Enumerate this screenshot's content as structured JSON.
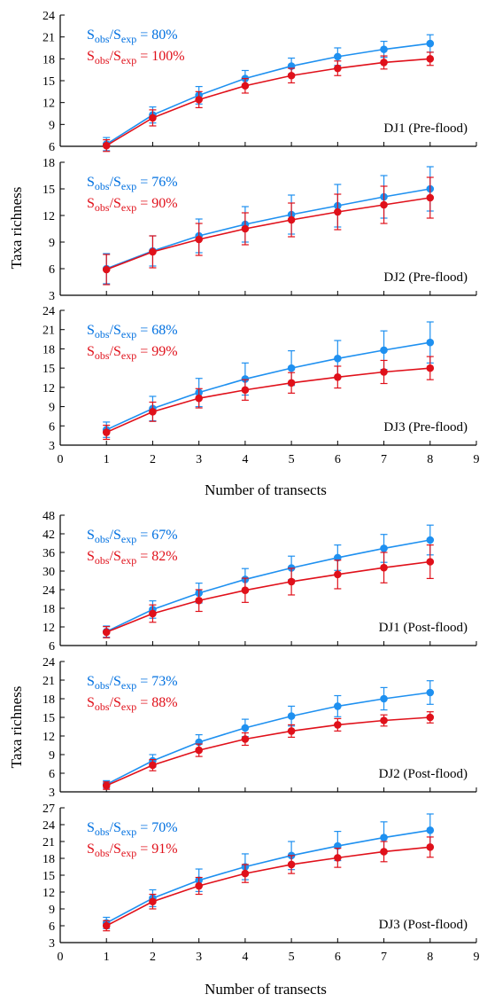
{
  "colors": {
    "observed": "#0070e0",
    "expected": "#e0101a",
    "axis": "#000000"
  },
  "groups": [
    {
      "xlabel": "Number of transects",
      "ylabel": "Taxa richness"
    },
    {
      "xlabel": "Number of transects",
      "ylabel": "Taxa richness"
    }
  ],
  "chart_data": [
    {
      "type": "line",
      "group": 0,
      "panel_label": "DJ1 (Pre-flood)",
      "x": [
        1,
        2,
        3,
        4,
        5,
        6,
        7,
        8
      ],
      "xlim": [
        0,
        9
      ],
      "ylim": [
        6,
        24
      ],
      "yticks": [
        6,
        9,
        12,
        15,
        18,
        21,
        24
      ],
      "annotations": [
        {
          "parts": [
            [
              "S",
              ""
            ],
            [
              "obs",
              "sub"
            ],
            [
              "/S",
              ""
            ],
            [
              "exp",
              "sub"
            ],
            [
              " = 80%",
              ""
            ]
          ],
          "color": "#0070e0"
        },
        {
          "parts": [
            [
              "S",
              ""
            ],
            [
              "obs",
              "sub"
            ],
            [
              "/S",
              ""
            ],
            [
              "exp",
              "sub"
            ],
            [
              " = 100%",
              ""
            ]
          ],
          "color": "#e0101a"
        }
      ],
      "series": [
        {
          "color": "#1e90f0",
          "values": [
            6.3,
            10.3,
            13.0,
            15.3,
            17.0,
            18.3,
            19.3,
            20.1
          ],
          "err": [
            0.9,
            1.1,
            1.2,
            1.1,
            1.1,
            1.2,
            1.1,
            1.2
          ]
        },
        {
          "color": "#e0101a",
          "values": [
            6.1,
            9.9,
            12.4,
            14.3,
            15.7,
            16.7,
            17.5,
            18.0
          ],
          "err": [
            0.8,
            1.1,
            1.1,
            1.0,
            1.0,
            1.0,
            0.9,
            0.9
          ]
        }
      ]
    },
    {
      "type": "line",
      "group": 0,
      "panel_label": "DJ2 (Pre-flood)",
      "x": [
        1,
        2,
        3,
        4,
        5,
        6,
        7,
        8
      ],
      "xlim": [
        0,
        9
      ],
      "ylim": [
        3,
        18
      ],
      "yticks": [
        3,
        6,
        9,
        12,
        15,
        18
      ],
      "annotations": [
        {
          "parts": [
            [
              "S",
              ""
            ],
            [
              "obs",
              "sub"
            ],
            [
              "/S",
              ""
            ],
            [
              "exp",
              "sub"
            ],
            [
              " = 76%",
              ""
            ]
          ],
          "color": "#0070e0"
        },
        {
          "parts": [
            [
              "S",
              ""
            ],
            [
              "obs",
              "sub"
            ],
            [
              "/S",
              ""
            ],
            [
              "exp",
              "sub"
            ],
            [
              " = 90%",
              ""
            ]
          ],
          "color": "#e0101a"
        }
      ],
      "series": [
        {
          "color": "#1e90f0",
          "values": [
            6.0,
            8.0,
            9.7,
            11.0,
            12.1,
            13.1,
            14.1,
            15.0
          ],
          "err": [
            1.7,
            1.7,
            1.9,
            2.0,
            2.2,
            2.4,
            2.4,
            2.5
          ]
        },
        {
          "color": "#e0101a",
          "values": [
            5.9,
            7.9,
            9.3,
            10.5,
            11.5,
            12.4,
            13.2,
            14.0
          ],
          "err": [
            1.7,
            1.8,
            1.8,
            1.8,
            1.9,
            2.0,
            2.1,
            2.3
          ]
        }
      ]
    },
    {
      "type": "line",
      "group": 0,
      "panel_label": "DJ3 (Pre-flood)",
      "x": [
        1,
        2,
        3,
        4,
        5,
        6,
        7,
        8
      ],
      "xlim": [
        0,
        9
      ],
      "ylim": [
        3,
        24
      ],
      "yticks": [
        3,
        6,
        9,
        12,
        15,
        18,
        21,
        24
      ],
      "xticks": [
        0,
        1,
        2,
        3,
        4,
        5,
        6,
        7,
        8,
        9
      ],
      "annotations": [
        {
          "parts": [
            [
              "S",
              ""
            ],
            [
              "obs",
              "sub"
            ],
            [
              "/S",
              ""
            ],
            [
              "exp",
              "sub"
            ],
            [
              " = 68%",
              ""
            ]
          ],
          "color": "#0070e0"
        },
        {
          "parts": [
            [
              "S",
              ""
            ],
            [
              "obs",
              "sub"
            ],
            [
              "/S",
              ""
            ],
            [
              "exp",
              "sub"
            ],
            [
              " = 99%",
              ""
            ]
          ],
          "color": "#e0101a"
        }
      ],
      "series": [
        {
          "color": "#1e90f0",
          "values": [
            5.4,
            8.7,
            11.2,
            13.3,
            15.0,
            16.5,
            17.8,
            19.0
          ],
          "err": [
            1.2,
            1.9,
            2.2,
            2.5,
            2.7,
            2.8,
            3.0,
            3.2
          ]
        },
        {
          "color": "#e0101a",
          "values": [
            5.0,
            8.2,
            10.3,
            11.6,
            12.7,
            13.6,
            14.4,
            15.0
          ],
          "err": [
            1.1,
            1.5,
            1.5,
            1.6,
            1.6,
            1.7,
            1.8,
            1.8
          ]
        }
      ]
    },
    {
      "type": "line",
      "group": 1,
      "panel_label": "DJ1 (Post-flood)",
      "x": [
        1,
        2,
        3,
        4,
        5,
        6,
        7,
        8
      ],
      "xlim": [
        0,
        9
      ],
      "ylim": [
        6,
        48
      ],
      "yticks": [
        6,
        12,
        18,
        24,
        30,
        36,
        42,
        48
      ],
      "annotations": [
        {
          "parts": [
            [
              "S",
              ""
            ],
            [
              "obs",
              "sub"
            ],
            [
              "/S",
              ""
            ],
            [
              "exp",
              "sub"
            ],
            [
              " = 67%",
              ""
            ]
          ],
          "color": "#0070e0"
        },
        {
          "parts": [
            [
              "S",
              ""
            ],
            [
              "obs",
              "sub"
            ],
            [
              "/S",
              ""
            ],
            [
              "exp",
              "sub"
            ],
            [
              " = 82%",
              ""
            ]
          ],
          "color": "#e0101a"
        }
      ],
      "series": [
        {
          "color": "#1e90f0",
          "values": [
            10.5,
            17.6,
            22.9,
            27.3,
            31.0,
            34.3,
            37.3,
            40.0
          ],
          "err": [
            1.8,
            2.8,
            3.2,
            3.5,
            3.8,
            4.1,
            4.5,
            4.8
          ]
        },
        {
          "color": "#e0101a",
          "values": [
            10.3,
            16.3,
            20.5,
            23.8,
            26.6,
            28.9,
            31.1,
            33.0
          ],
          "err": [
            1.8,
            2.8,
            3.5,
            3.9,
            4.3,
            4.6,
            4.9,
            5.4
          ]
        }
      ]
    },
    {
      "type": "line",
      "group": 1,
      "panel_label": "DJ2 (Post-flood)",
      "x": [
        1,
        2,
        3,
        4,
        5,
        6,
        7,
        8
      ],
      "xlim": [
        0,
        9
      ],
      "ylim": [
        3,
        24
      ],
      "yticks": [
        3,
        6,
        9,
        12,
        15,
        18,
        21,
        24
      ],
      "annotations": [
        {
          "parts": [
            [
              "S",
              ""
            ],
            [
              "obs",
              "sub"
            ],
            [
              "/S",
              ""
            ],
            [
              "exp",
              "sub"
            ],
            [
              " = 73%",
              ""
            ]
          ],
          "color": "#0070e0"
        },
        {
          "parts": [
            [
              "S",
              ""
            ],
            [
              "obs",
              "sub"
            ],
            [
              "/S",
              ""
            ],
            [
              "exp",
              "sub"
            ],
            [
              " = 88%",
              ""
            ]
          ],
          "color": "#e0101a"
        }
      ],
      "series": [
        {
          "color": "#1e90f0",
          "values": [
            4.2,
            8.0,
            11.0,
            13.3,
            15.2,
            16.8,
            18.0,
            19.0
          ],
          "err": [
            0.6,
            1.0,
            1.2,
            1.4,
            1.6,
            1.7,
            1.8,
            1.9
          ]
        },
        {
          "color": "#e0101a",
          "values": [
            4.0,
            7.3,
            9.7,
            11.5,
            12.8,
            13.8,
            14.5,
            15.0
          ],
          "err": [
            0.6,
            0.9,
            1.0,
            1.0,
            1.0,
            1.0,
            0.9,
            0.9
          ]
        }
      ]
    },
    {
      "type": "line",
      "group": 1,
      "panel_label": "DJ3 (Post-flood)",
      "x": [
        1,
        2,
        3,
        4,
        5,
        6,
        7,
        8
      ],
      "xlim": [
        0,
        9
      ],
      "ylim": [
        3,
        27
      ],
      "yticks": [
        3,
        6,
        9,
        12,
        15,
        18,
        21,
        24,
        27
      ],
      "xticks": [
        0,
        1,
        2,
        3,
        4,
        5,
        6,
        7,
        8,
        9
      ],
      "annotations": [
        {
          "parts": [
            [
              "S",
              ""
            ],
            [
              "obs",
              "sub"
            ],
            [
              "/S",
              ""
            ],
            [
              "exp",
              "sub"
            ],
            [
              " = 70%",
              ""
            ]
          ],
          "color": "#0070e0"
        },
        {
          "parts": [
            [
              "S",
              ""
            ],
            [
              "obs",
              "sub"
            ],
            [
              "/S",
              ""
            ],
            [
              "exp",
              "sub"
            ],
            [
              " = 91%",
              ""
            ]
          ],
          "color": "#e0101a"
        }
      ],
      "series": [
        {
          "color": "#1e90f0",
          "values": [
            6.5,
            10.9,
            14.1,
            16.5,
            18.5,
            20.2,
            21.7,
            23.0
          ],
          "err": [
            1.0,
            1.5,
            2.0,
            2.3,
            2.5,
            2.6,
            2.8,
            2.9
          ]
        },
        {
          "color": "#e0101a",
          "values": [
            6.0,
            10.3,
            13.1,
            15.3,
            16.9,
            18.1,
            19.2,
            20.0
          ],
          "err": [
            0.9,
            1.3,
            1.5,
            1.6,
            1.6,
            1.7,
            1.8,
            1.8
          ]
        }
      ]
    }
  ]
}
